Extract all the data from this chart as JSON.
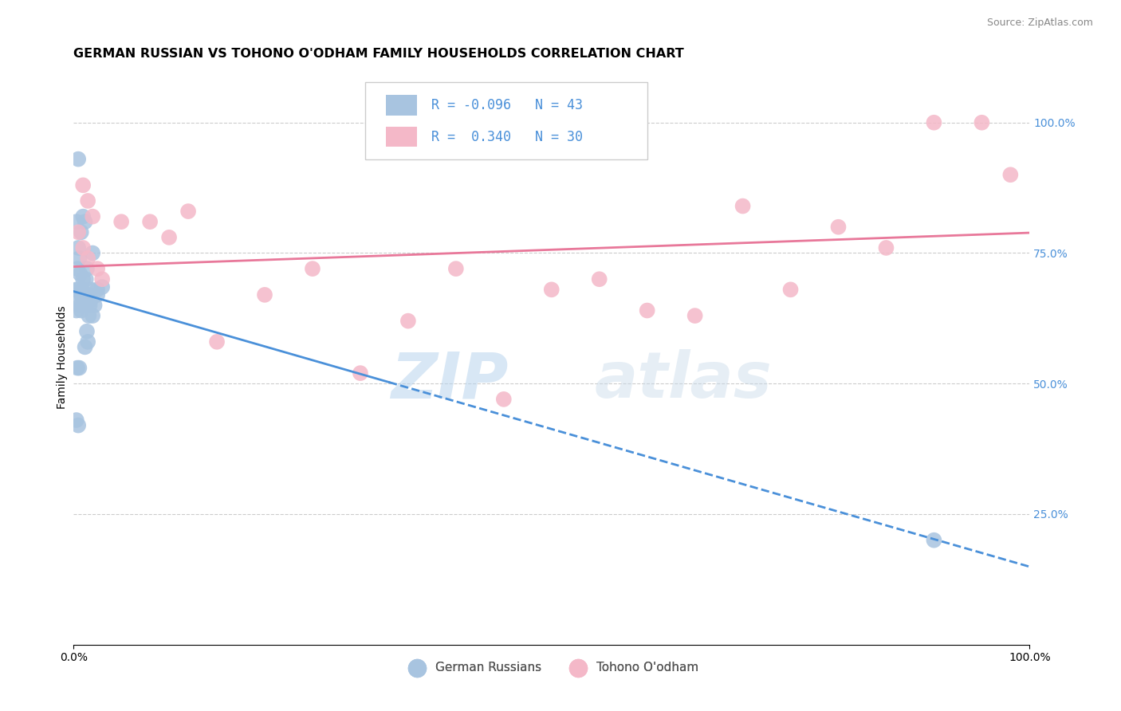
{
  "title": "GERMAN RUSSIAN VS TOHONO O'ODHAM FAMILY HOUSEHOLDS CORRELATION CHART",
  "source": "Source: ZipAtlas.com",
  "ylabel": "Family Households",
  "legend_blue_label": "German Russians",
  "legend_pink_label": "Tohono O'odham",
  "blue_R": "-0.096",
  "blue_N": "43",
  "pink_R": " 0.340",
  "pink_N": "30",
  "blue_color": "#a8c4e0",
  "pink_color": "#f4b8c8",
  "blue_line_color": "#4a90d9",
  "pink_line_color": "#e8789a",
  "legend_text_color": "#4a90d9",
  "watermark_zip": "ZIP",
  "watermark_atlas": "atlas",
  "blue_points_x": [
    0.5,
    1.0,
    2.0,
    0.3,
    0.8,
    1.2,
    1.8,
    0.5,
    0.7,
    1.0,
    1.3,
    1.5,
    1.7,
    2.0,
    0.4,
    0.6,
    0.9,
    1.1,
    1.4,
    1.6,
    0.3,
    0.5,
    0.8,
    1.0,
    1.2,
    1.5,
    2.5,
    0.4,
    0.6,
    0.3,
    0.8,
    1.0,
    1.4,
    0.5,
    0.7,
    0.9,
    0.3,
    0.5,
    1.8,
    2.2,
    2.5,
    3.0,
    90.0
  ],
  "blue_points_y": [
    93.0,
    82.0,
    75.0,
    81.0,
    79.0,
    81.0,
    68.0,
    76.0,
    71.0,
    70.0,
    70.0,
    67.0,
    65.0,
    63.0,
    72.0,
    74.0,
    68.0,
    66.0,
    60.0,
    63.0,
    68.0,
    68.0,
    67.0,
    65.0,
    57.0,
    58.0,
    68.0,
    53.0,
    53.0,
    64.0,
    64.0,
    67.0,
    72.0,
    66.0,
    65.0,
    67.0,
    43.0,
    42.0,
    66.0,
    65.0,
    67.0,
    68.5,
    20.0
  ],
  "pink_points_x": [
    1.0,
    1.5,
    2.0,
    0.5,
    1.0,
    1.5,
    3.0,
    40.0,
    50.0,
    60.0,
    70.0,
    80.0,
    90.0,
    95.0,
    98.0,
    65.0,
    75.0,
    85.0,
    20.0,
    30.0,
    45.0,
    10.0,
    5.0,
    2.5,
    35.0,
    55.0,
    15.0,
    25.0,
    8.0,
    12.0
  ],
  "pink_points_y": [
    88.0,
    85.0,
    82.0,
    79.0,
    76.0,
    74.0,
    70.0,
    72.0,
    68.0,
    64.0,
    84.0,
    80.0,
    100.0,
    100.0,
    90.0,
    63.0,
    68.0,
    76.0,
    67.0,
    52.0,
    47.0,
    78.0,
    81.0,
    72.0,
    62.0,
    70.0,
    58.0,
    72.0,
    81.0,
    83.0
  ],
  "xlim": [
    0,
    100
  ],
  "ylim": [
    0,
    110
  ],
  "yticks": [
    25.0,
    50.0,
    75.0,
    100.0
  ],
  "ytick_labels": [
    "25.0%",
    "50.0%",
    "75.0%",
    "100.0%"
  ],
  "grid_color": "#cccccc",
  "background_color": "#ffffff",
  "title_fontsize": 11.5,
  "source_fontsize": 9,
  "axis_fontsize": 10
}
